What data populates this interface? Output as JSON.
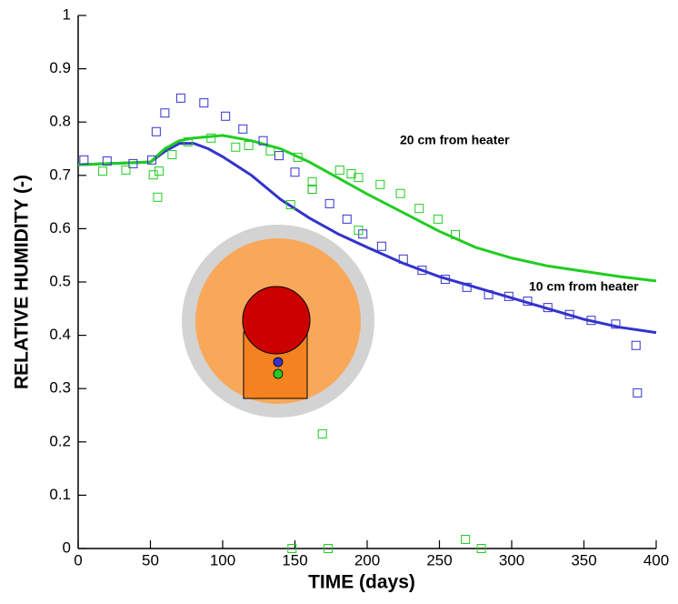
{
  "chart_data": {
    "type": "line",
    "xlabel": "TIME (days)",
    "ylabel": "RELATIVE HUMIDITY (-)",
    "xlim": [
      0,
      400
    ],
    "xticks": [
      0,
      50,
      100,
      150,
      200,
      250,
      300,
      350,
      400
    ],
    "ylim": [
      0,
      1
    ],
    "yticks": [
      0,
      0.1,
      0.2,
      0.3,
      0.4,
      0.5,
      0.6,
      0.7,
      0.8,
      0.9,
      1
    ],
    "series": [
      {
        "type": "line",
        "name": "10 cm from heater",
        "color": "#3333cc",
        "x": [
          0,
          50,
          60,
          70,
          80,
          90,
          100,
          120,
          140,
          160,
          180,
          200,
          225,
          250,
          275,
          300,
          325,
          350,
          375,
          400
        ],
        "values": [
          0.72,
          0.725,
          0.745,
          0.76,
          0.76,
          0.75,
          0.735,
          0.7,
          0.655,
          0.62,
          0.59,
          0.565,
          0.535,
          0.51,
          0.49,
          0.47,
          0.45,
          0.43,
          0.415,
          0.405
        ]
      },
      {
        "type": "line",
        "name": "20 cm from heater",
        "color": "#22cc22",
        "x": [
          0,
          50,
          60,
          70,
          80,
          100,
          120,
          140,
          160,
          180,
          200,
          225,
          250,
          275,
          300,
          325,
          350,
          375,
          400
        ],
        "values": [
          0.72,
          0.725,
          0.75,
          0.765,
          0.77,
          0.775,
          0.765,
          0.75,
          0.725,
          0.695,
          0.665,
          0.63,
          0.595,
          0.565,
          0.545,
          0.53,
          0.52,
          0.51,
          0.502
        ]
      },
      {
        "type": "scatter",
        "color": "#3333cc",
        "x": [
          4,
          20,
          38,
          51,
          54,
          60,
          71,
          87,
          102,
          114,
          128,
          139,
          150,
          162,
          174,
          186,
          197,
          210,
          225,
          238,
          254,
          269,
          284,
          298,
          311,
          325,
          340,
          355,
          372,
          386,
          387
        ],
        "values": [
          0.729,
          0.727,
          0.722,
          0.729,
          0.782,
          0.817,
          0.845,
          0.836,
          0.811,
          0.787,
          0.765,
          0.737,
          0.706,
          0.674,
          0.647,
          0.618,
          0.59,
          0.567,
          0.543,
          0.522,
          0.505,
          0.49,
          0.476,
          0.473,
          0.464,
          0.452,
          0.439,
          0.428,
          0.421,
          0.381,
          0.292
        ]
      },
      {
        "type": "scatter",
        "color": "#22cc22",
        "x": [
          17,
          33,
          52,
          56,
          55,
          65,
          76,
          92,
          109,
          118,
          133,
          147,
          152,
          162,
          162,
          169,
          181,
          189,
          194,
          194,
          209,
          223,
          236,
          249,
          261,
          148,
          173,
          268,
          279
        ],
        "values": [
          0.708,
          0.71,
          0.701,
          0.708,
          0.659,
          0.739,
          0.763,
          0.77,
          0.753,
          0.756,
          0.746,
          0.645,
          0.734,
          0.688,
          0.674,
          0.215,
          0.71,
          0.703,
          0.696,
          0.597,
          0.683,
          0.666,
          0.638,
          0.618,
          0.589,
          0,
          0,
          0.017,
          0
        ]
      }
    ]
  }
}
